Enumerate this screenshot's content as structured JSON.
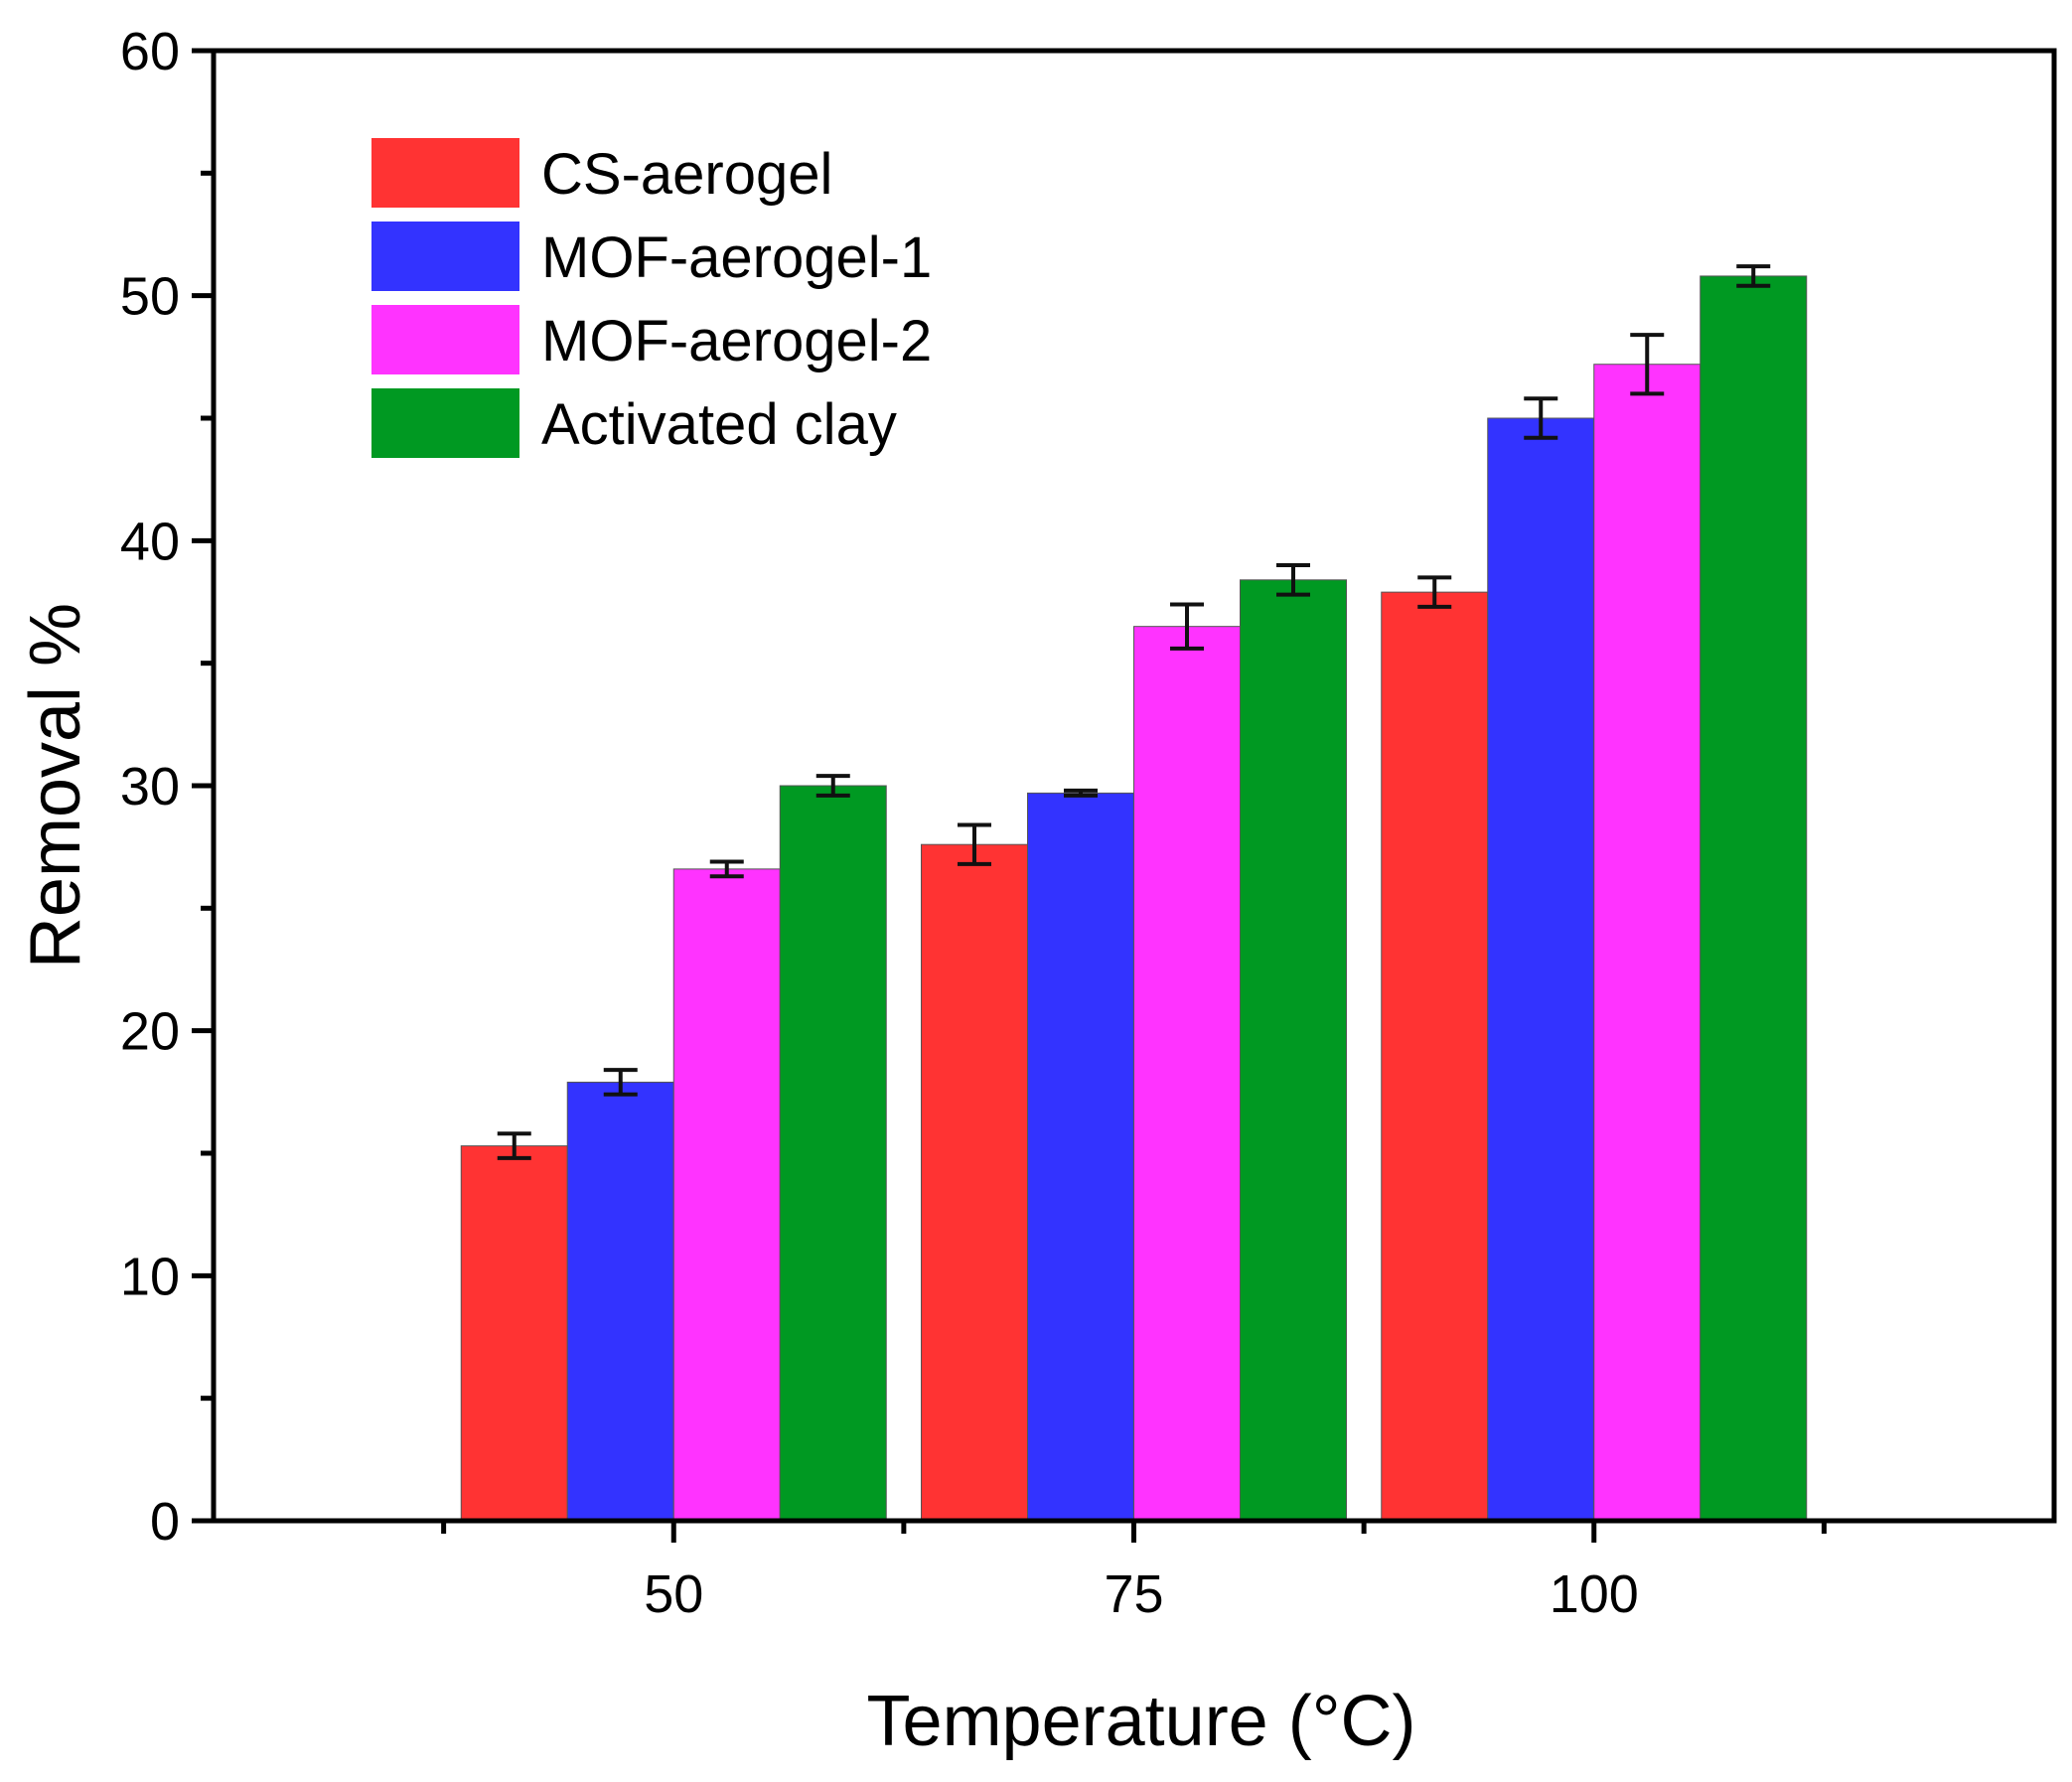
{
  "chart_data": {
    "type": "bar",
    "xlabel": "Temperature (°C)",
    "ylabel": "Removal %",
    "ylim": [
      0,
      60
    ],
    "yticks": [
      0,
      10,
      20,
      30,
      40,
      50,
      60
    ],
    "categories": [
      "50",
      "75",
      "100"
    ],
    "grid": false,
    "legend_position": "top-left",
    "series": [
      {
        "name": "CS-aerogel",
        "color": "#ff3333",
        "values": [
          15.3,
          27.6,
          37.9
        ],
        "errors": [
          0.5,
          0.8,
          0.6
        ]
      },
      {
        "name": "MOF-aerogel-1",
        "color": "#3333ff",
        "values": [
          17.9,
          29.7,
          45.0
        ],
        "errors": [
          0.5,
          0.1,
          0.8
        ]
      },
      {
        "name": "MOF-aerogel-2",
        "color": "#ff33ff",
        "values": [
          26.6,
          36.5,
          47.2
        ],
        "errors": [
          0.3,
          0.9,
          1.2
        ]
      },
      {
        "name": "Activated clay",
        "color": "#009922",
        "values": [
          30.0,
          38.4,
          50.8
        ],
        "errors": [
          0.4,
          0.6,
          0.4
        ]
      }
    ]
  }
}
